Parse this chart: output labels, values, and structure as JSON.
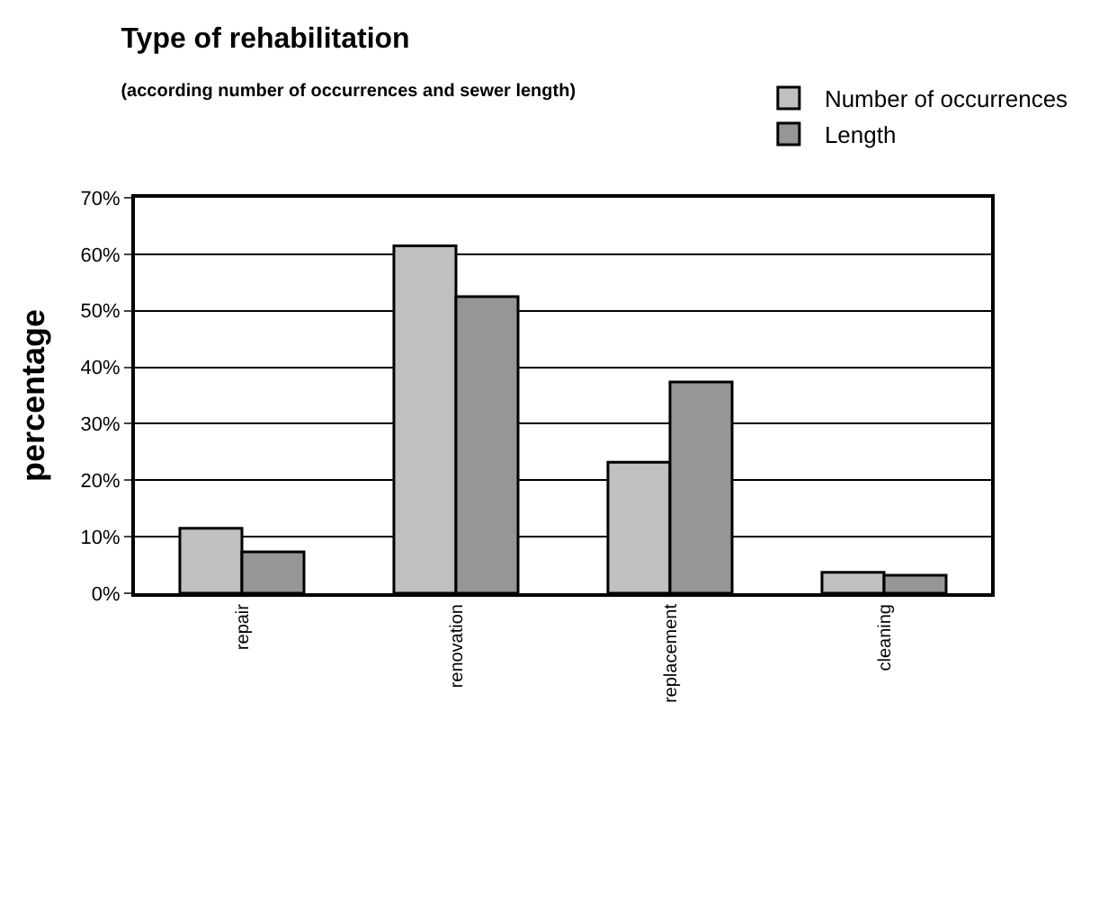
{
  "chart_data": {
    "type": "bar",
    "title": "Type of rehabilitation",
    "subtitle": "(according number of occurrences and sewer length)",
    "ylabel": "percentage",
    "categories": [
      "repair",
      "renovation",
      "replacement",
      "cleaning"
    ],
    "series": [
      {
        "name": "Number of occurrences",
        "color": "#c0c0c0",
        "values": [
          11.5,
          61.5,
          23.2,
          3.7
        ]
      },
      {
        "name": "Length",
        "color": "#969696",
        "values": [
          7.3,
          52.5,
          37.4,
          3.2
        ]
      }
    ],
    "ylim": [
      0,
      70
    ],
    "yticks": [
      {
        "value": 0,
        "label": "0%"
      },
      {
        "value": 10,
        "label": "10%"
      },
      {
        "value": 20,
        "label": "20%"
      },
      {
        "value": 30,
        "label": "30%"
      },
      {
        "value": 40,
        "label": "40%"
      },
      {
        "value": 50,
        "label": "50%"
      },
      {
        "value": 60,
        "label": "60%"
      },
      {
        "value": 70,
        "label": "70%"
      }
    ],
    "grid": "y",
    "legend": "top right"
  }
}
